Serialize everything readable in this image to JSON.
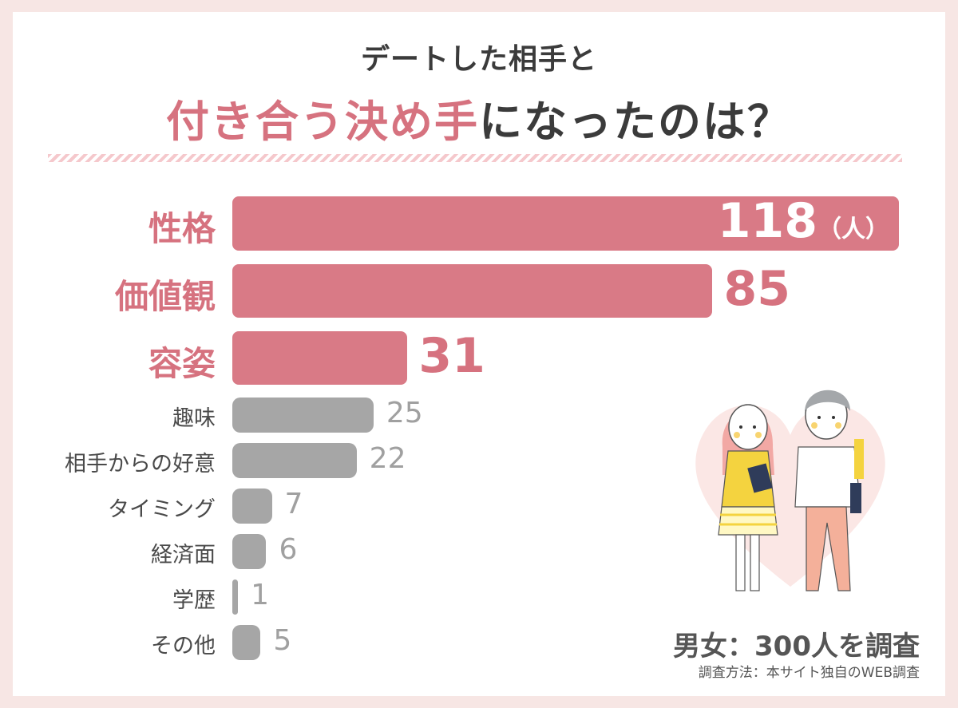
{
  "title_line1": "デートした相手と",
  "title_line2_highlight": "付き合う決め手",
  "title_line2_rest": "になったのは？",
  "unit_label": "（人）",
  "survey_summary": "男女：300人を調査",
  "survey_method": "調査方法：本サイト独自のWEB調査",
  "colors": {
    "highlight": "#d97a86",
    "other": "#a6a6a6"
  },
  "chart_data": {
    "type": "bar",
    "orientation": "horizontal",
    "categories": [
      "性格",
      "価値観",
      "容姿",
      "趣味",
      "相手からの好意",
      "タイミング",
      "経済面",
      "学歴",
      "その他"
    ],
    "values": [
      118,
      85,
      31,
      25,
      22,
      7,
      6,
      1,
      5
    ],
    "highlighted": [
      true,
      true,
      true,
      false,
      false,
      false,
      false,
      false,
      false
    ],
    "xlim": [
      0,
      118
    ]
  }
}
